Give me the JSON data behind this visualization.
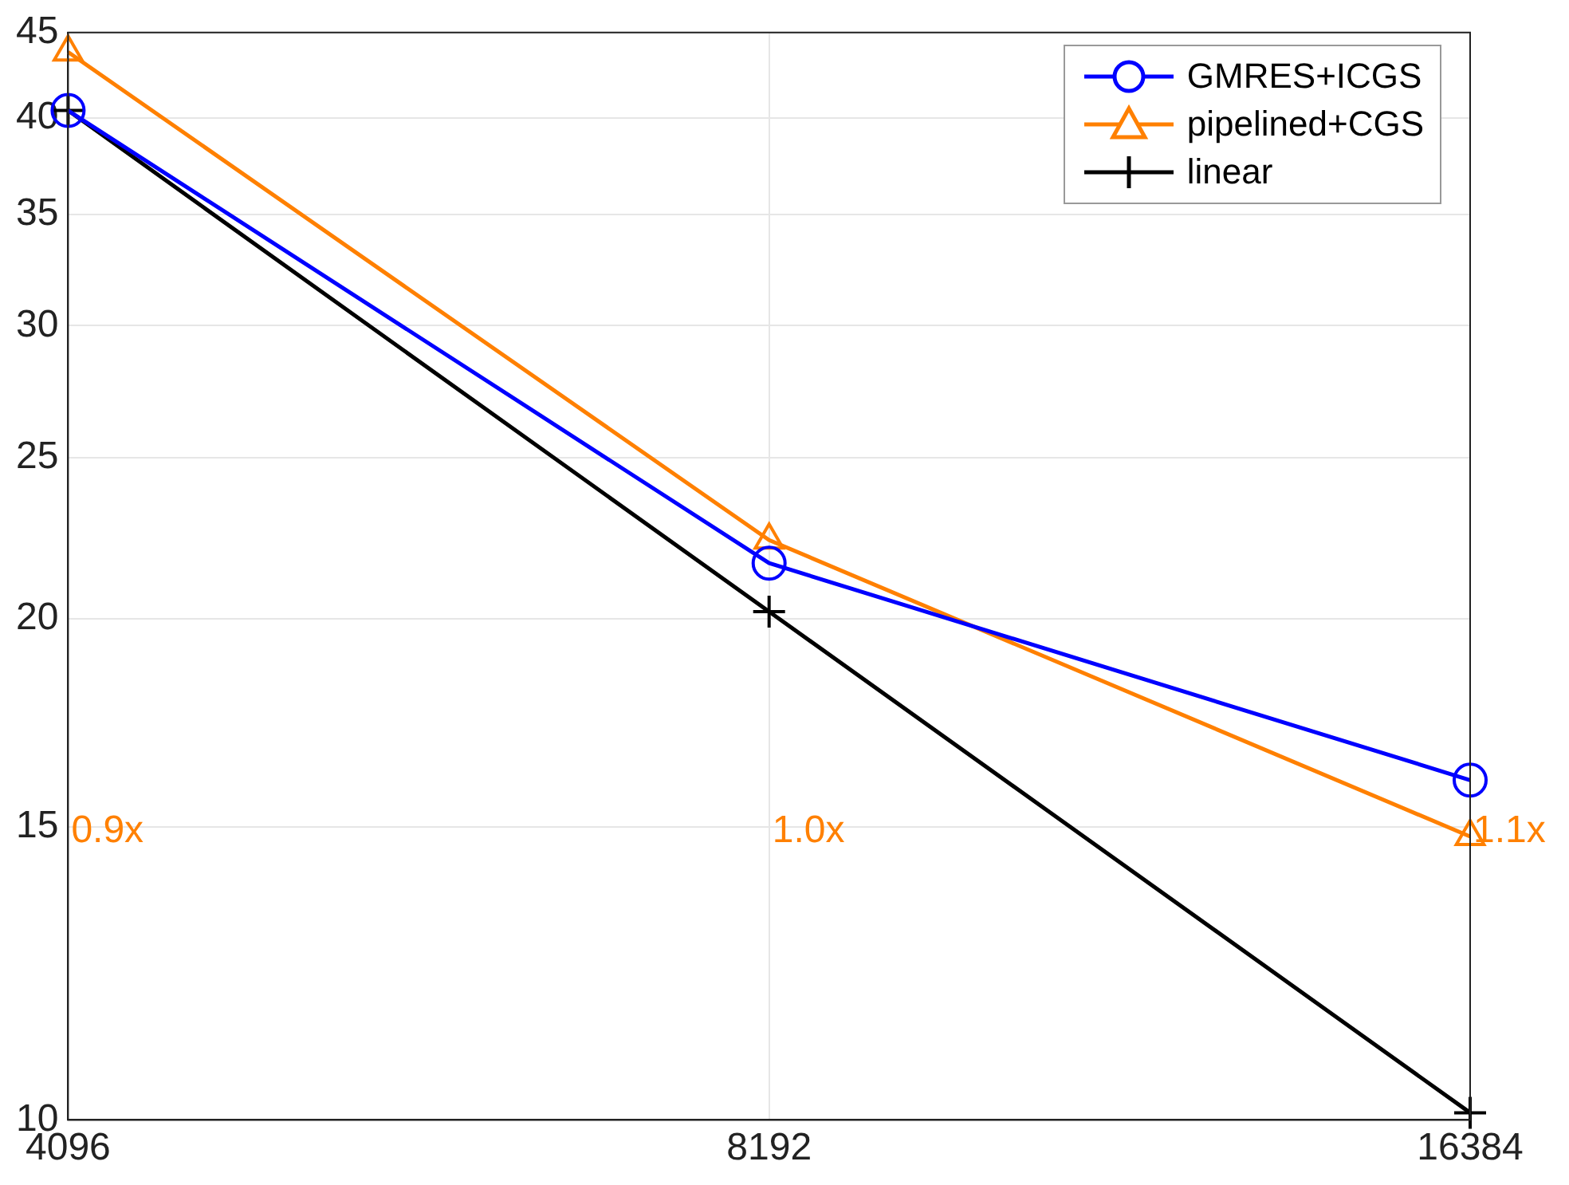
{
  "chart_data": {
    "type": "line",
    "x": [
      4096,
      8192,
      16384
    ],
    "series": [
      {
        "name": "GMRES+ICGS",
        "color": "#0000ff",
        "marker": "circle",
        "values": [
          40.4,
          21.6,
          16.0
        ]
      },
      {
        "name": "pipelined+CGS",
        "color": "#ff8000",
        "marker": "triangle",
        "values": [
          43.8,
          22.3,
          14.8
        ]
      },
      {
        "name": "linear",
        "color": "#000000",
        "marker": "cross",
        "values": [
          40.4,
          20.2,
          10.1
        ]
      }
    ],
    "log": "xy",
    "xlim": [
      4096,
      16384
    ],
    "xticks": [
      4096,
      8192,
      16384
    ],
    "ylim": [
      10,
      45
    ],
    "yticks": [
      10,
      15,
      20,
      25,
      30,
      35,
      40,
      45
    ],
    "grid": true,
    "legend": "top right",
    "line_style": "solid",
    "annotations": [
      "0.9x",
      "1.0x",
      "1.1x"
    ]
  }
}
